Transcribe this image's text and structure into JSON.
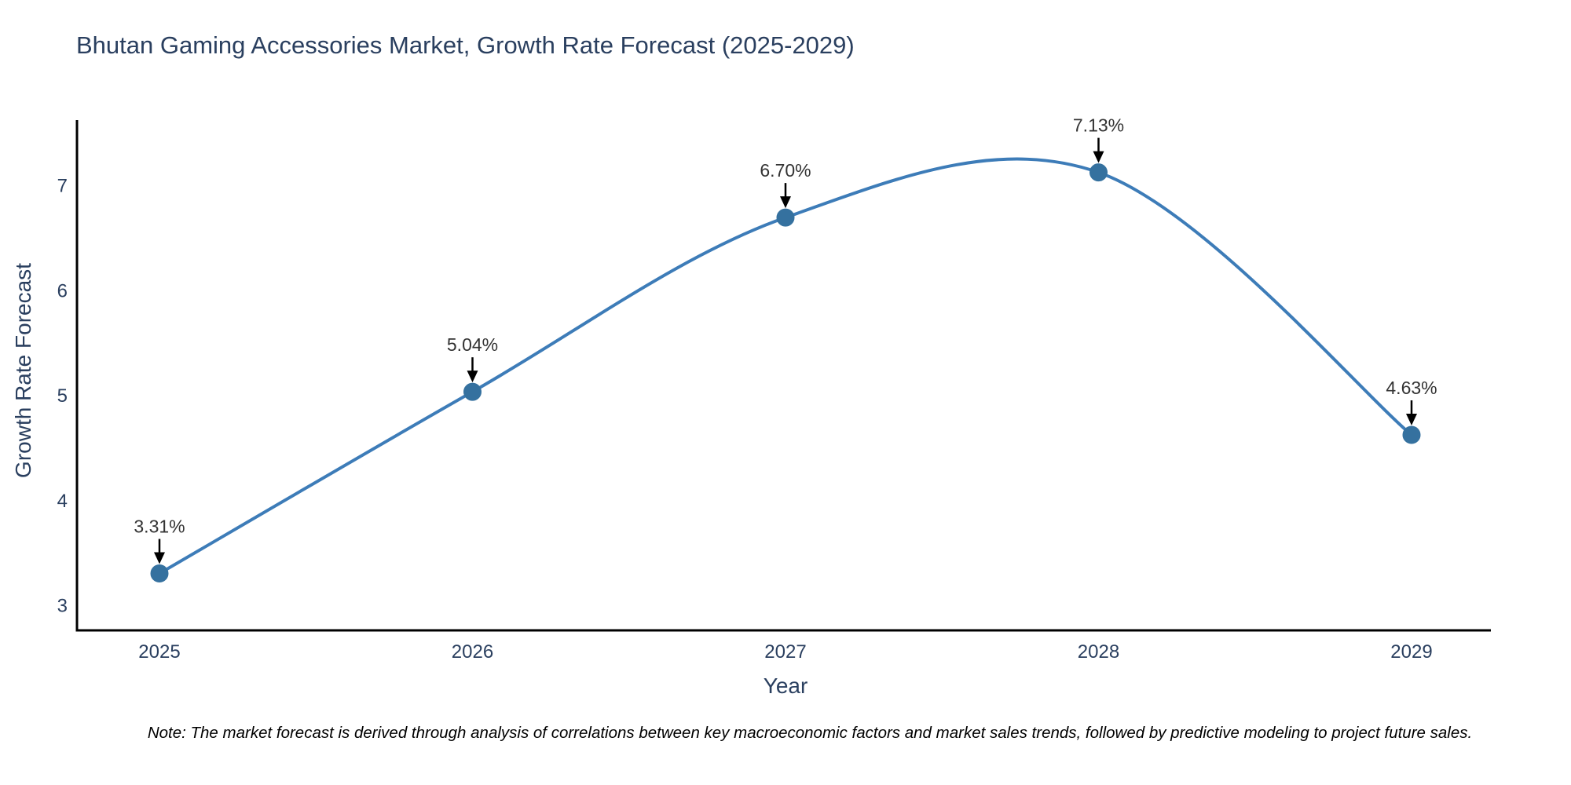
{
  "title": "Bhutan Gaming Accessories Market, Growth Rate Forecast (2025-2029)",
  "note": "Note: The market forecast is derived through analysis of correlations between key macroeconomic factors and market sales trends, followed by predictive modeling to project future sales.",
  "chart_data": {
    "type": "line",
    "title": "Bhutan Gaming Accessories Market, Growth Rate Forecast (2025-2029)",
    "xlabel": "Year",
    "ylabel": "Growth Rate Forecast",
    "x": [
      2025,
      2026,
      2027,
      2028,
      2029
    ],
    "y": [
      3.31,
      5.04,
      6.7,
      7.13,
      4.63
    ],
    "point_labels": [
      "3.31%",
      "5.04%",
      "6.70%",
      "7.13%",
      "4.63%"
    ],
    "x_tick_labels": [
      "2025",
      "2026",
      "2027",
      "2028",
      "2029"
    ],
    "y_tick_labels": [
      "3",
      "4",
      "5",
      "6",
      "7"
    ],
    "y_tick_values": [
      3,
      4,
      5,
      6,
      7
    ],
    "ylim": [
      2.75,
      7.6
    ],
    "line_shape": "spline",
    "grid": false,
    "legend": "none",
    "colors": {
      "line": "#3d7cb8",
      "marker_fill": "#35719f",
      "marker_edge": "#35719f",
      "axis_line": "#000000",
      "tick_text": "#2a3f5f",
      "title_text": "#2a3f5f",
      "annotation_text": "#333333",
      "arrow": "#000000",
      "background": "#ffffff"
    }
  }
}
